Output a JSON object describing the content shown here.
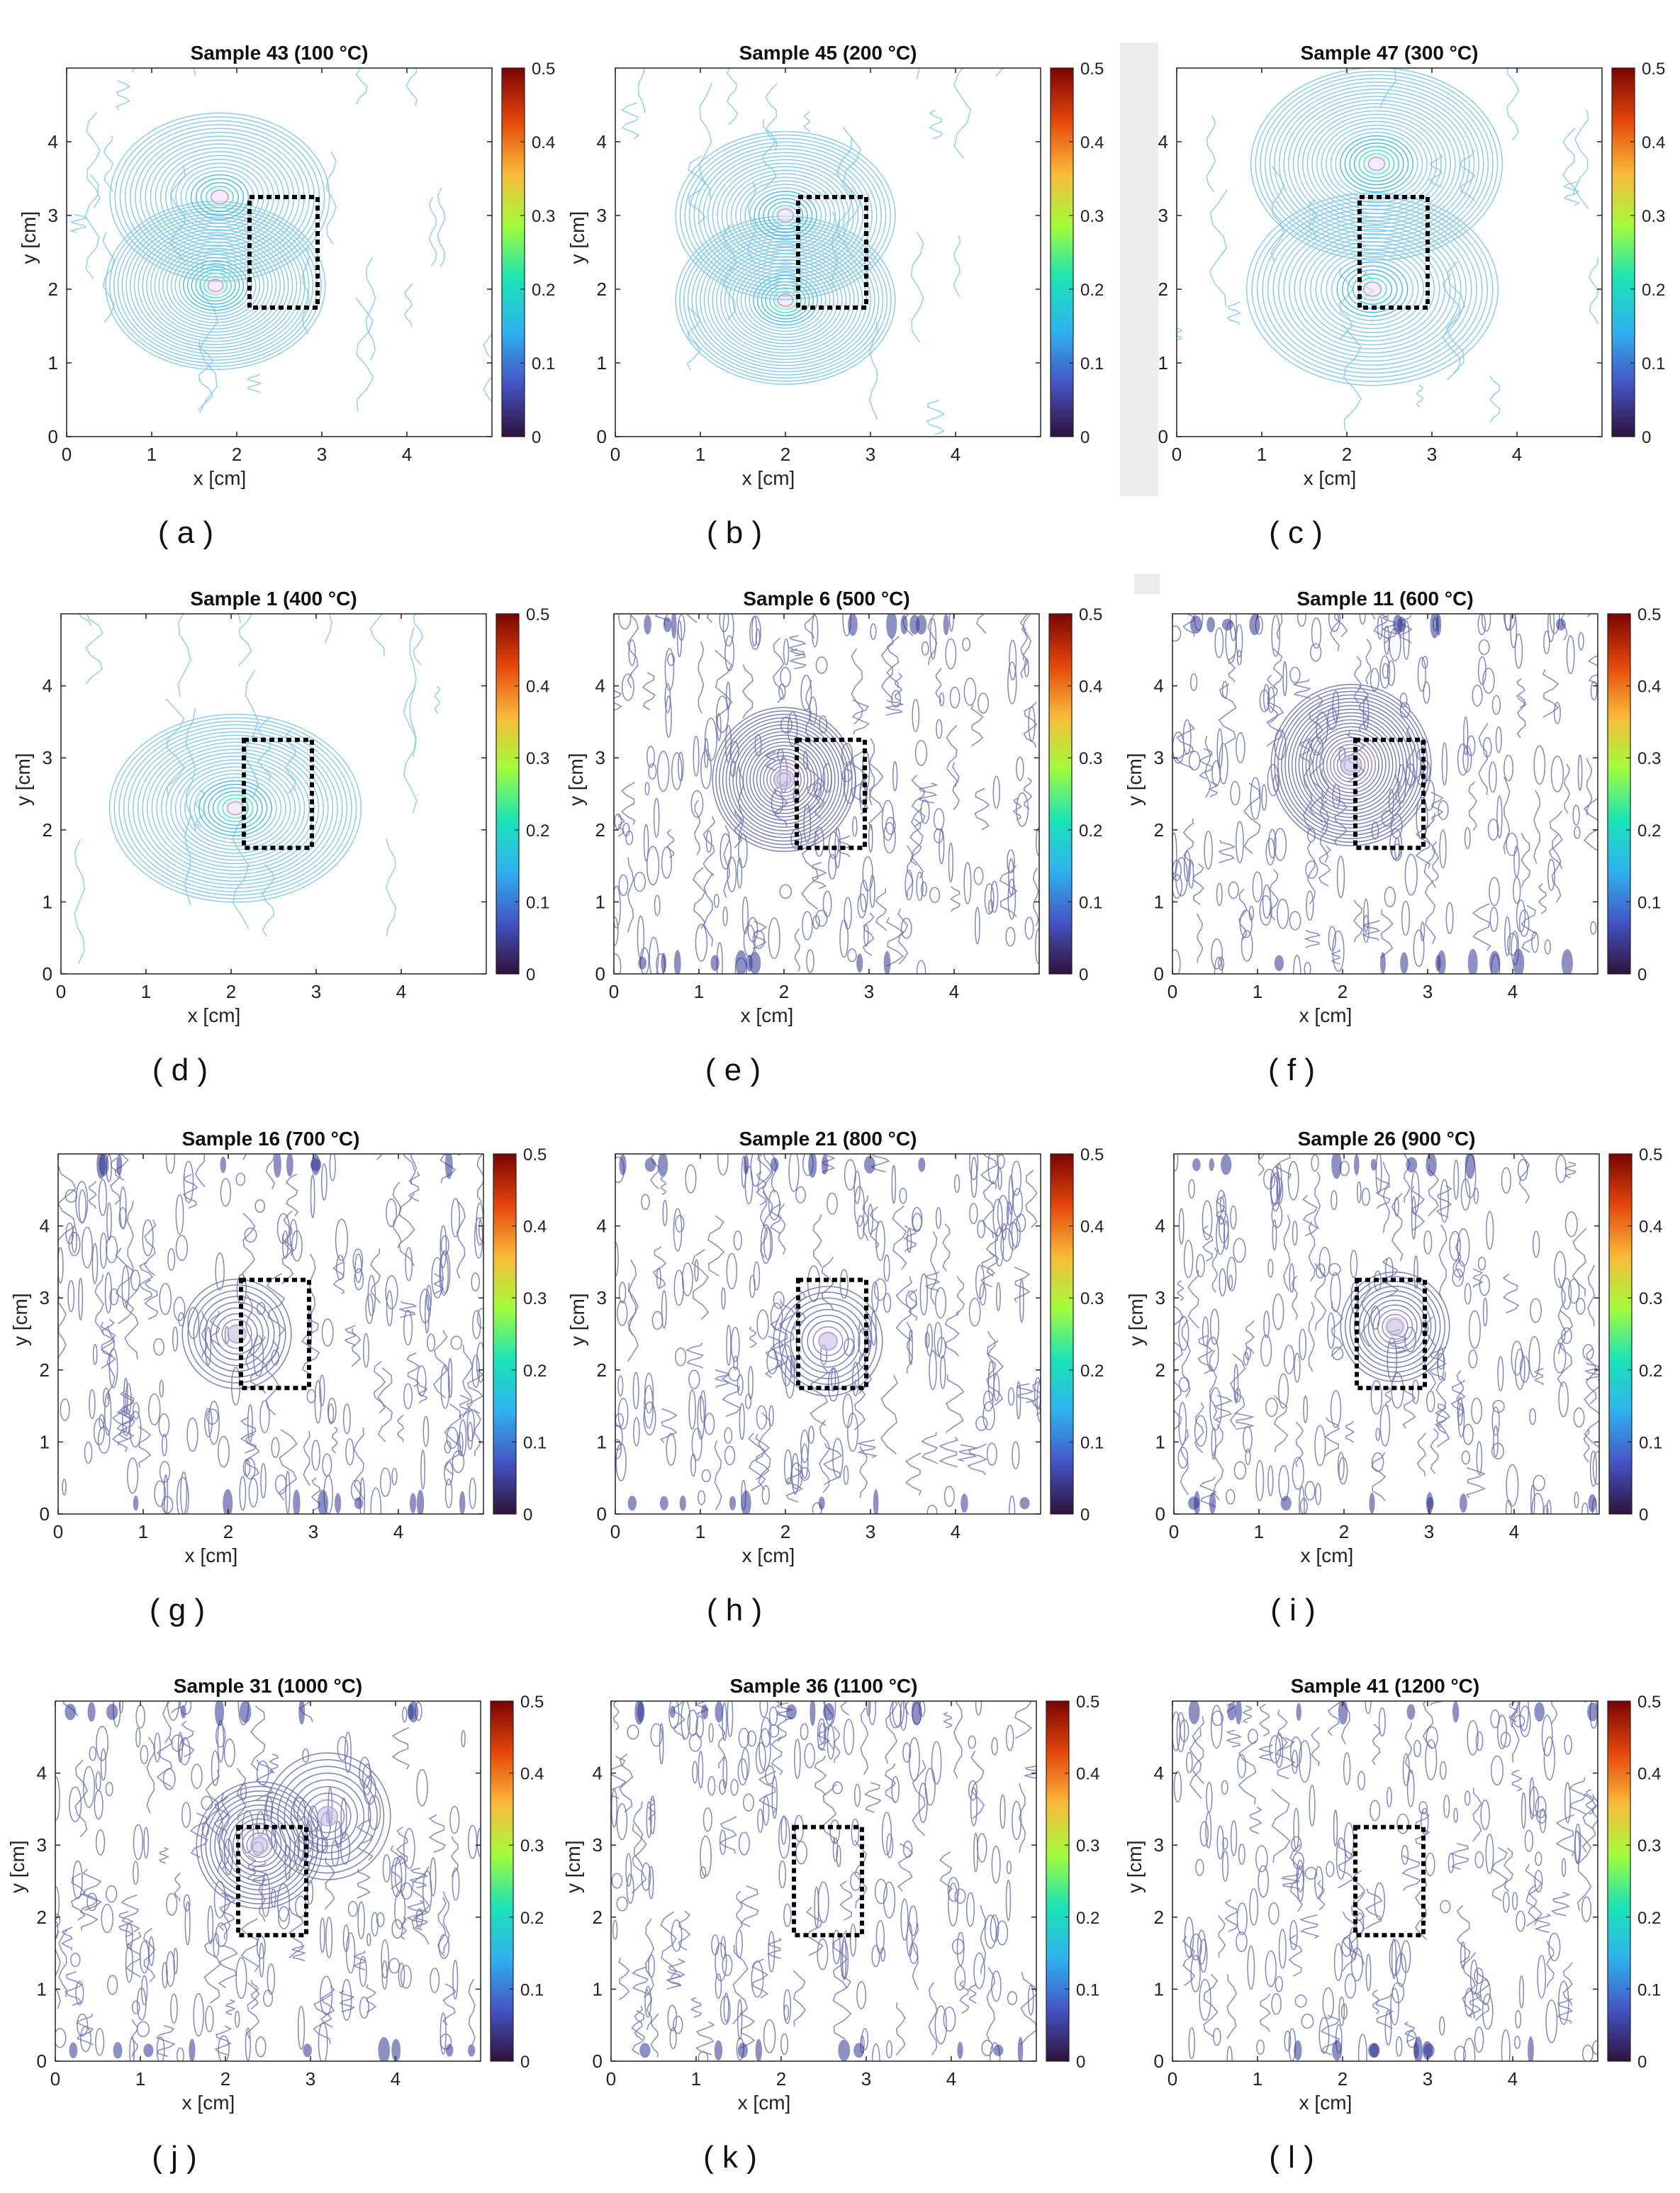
{
  "figure": {
    "panels": [
      {
        "id": "a",
        "caption": "( a )",
        "title": "Sample 43 (100 °C)",
        "temperature_c": 100,
        "style": "cool",
        "hot_spots": [
          [
            1.75,
            2.05,
            1.0
          ],
          [
            1.8,
            3.25,
            0.8
          ]
        ],
        "spread": 1.0
      },
      {
        "id": "b",
        "caption": "( b )",
        "title": "Sample 45 (200 °C)",
        "temperature_c": 200,
        "style": "cool",
        "hot_spots": [
          [
            2.0,
            1.85,
            1.0
          ],
          [
            2.0,
            3.0,
            0.9
          ]
        ],
        "spread": 1.0
      },
      {
        "id": "c",
        "caption": "( c )",
        "title": "Sample 47 (300 °C)",
        "temperature_c": 300,
        "style": "cool",
        "hot_spots": [
          [
            2.35,
            3.7,
            1.0
          ],
          [
            2.3,
            2.0,
            0.9
          ]
        ],
        "spread": 1.15
      },
      {
        "id": "d",
        "caption": "( d )",
        "title": "Sample 1 (400 °C)",
        "temperature_c": 400,
        "style": "cool",
        "hot_spots": [
          [
            2.05,
            2.3,
            1.0
          ]
        ],
        "spread": 1.15
      },
      {
        "id": "e",
        "caption": "( e )",
        "title": "Sample 6 (500 °C)",
        "temperature_c": 500,
        "style": "noisy",
        "hot_spots": [
          [
            2.0,
            2.7,
            0.9
          ]
        ],
        "spread": 0.8
      },
      {
        "id": "f",
        "caption": "( f )",
        "title": "Sample 11 (600 °C)",
        "temperature_c": 600,
        "style": "noisy",
        "hot_spots": [
          [
            2.1,
            2.9,
            1.0
          ]
        ],
        "spread": 0.9
      },
      {
        "id": "g",
        "caption": "( g )",
        "title": "Sample 16 (700 °C)",
        "temperature_c": 700,
        "style": "noisy",
        "hot_spots": [
          [
            2.1,
            2.5,
            0.4
          ]
        ],
        "spread": 0.6
      },
      {
        "id": "h",
        "caption": "( h )",
        "title": "Sample 21 (800 °C)",
        "temperature_c": 800,
        "style": "noisy",
        "hot_spots": [
          [
            2.5,
            2.4,
            0.4
          ]
        ],
        "spread": 0.6
      },
      {
        "id": "i",
        "caption": "( i )",
        "title": "Sample 26 (900 °C)",
        "temperature_c": 900,
        "style": "noisy",
        "hot_spots": [
          [
            2.6,
            2.6,
            0.5
          ]
        ],
        "spread": 0.6
      },
      {
        "id": "j",
        "caption": "( j )",
        "title": "Sample 31 (1000 °C)",
        "temperature_c": 1000,
        "style": "noisy",
        "hot_spots": [
          [
            2.4,
            3.0,
            0.6
          ],
          [
            3.2,
            3.4,
            0.4
          ]
        ],
        "spread": 0.7
      },
      {
        "id": "k",
        "caption": "( k )",
        "title": "Sample 36 (1100 °C)",
        "temperature_c": 1100,
        "style": "noisy",
        "hot_spots": [],
        "spread": 0.6
      },
      {
        "id": "l",
        "caption": "( l )",
        "title": "Sample 41 (1200 °C)",
        "temperature_c": 1200,
        "style": "noisy",
        "hot_spots": [],
        "spread": 0.6
      }
    ]
  },
  "chart_data": {
    "type": "contour",
    "panel_count": 12,
    "xlabel": "x [cm]",
    "ylabel": "y [cm]",
    "xlim": [
      0,
      5
    ],
    "ylim": [
      0,
      5
    ],
    "x_ticks": [
      "0",
      "1",
      "2",
      "3",
      "4"
    ],
    "y_ticks": [
      "0",
      "1",
      "2",
      "3",
      "4"
    ],
    "colorbar": {
      "range": [
        0,
        0.5
      ],
      "ticks": [
        "0",
        "0.1",
        "0.2",
        "0.3",
        "0.4",
        "0.5"
      ],
      "colormap": "jet",
      "stops": [
        "#30123b",
        "#4454c4",
        "#2fb2f0",
        "#1ae4b6",
        "#a2fc3c",
        "#faba39",
        "#e4460a",
        "#7a0403"
      ]
    },
    "region_of_interest": {
      "x": [
        2.15,
        2.95
      ],
      "y": [
        1.75,
        3.25
      ],
      "line_style": "dotted",
      "color": "#000000"
    },
    "contour_colors": {
      "cool": "#7ec8e8",
      "noisy": "#6e73b4",
      "hot": "#2d3590"
    }
  }
}
